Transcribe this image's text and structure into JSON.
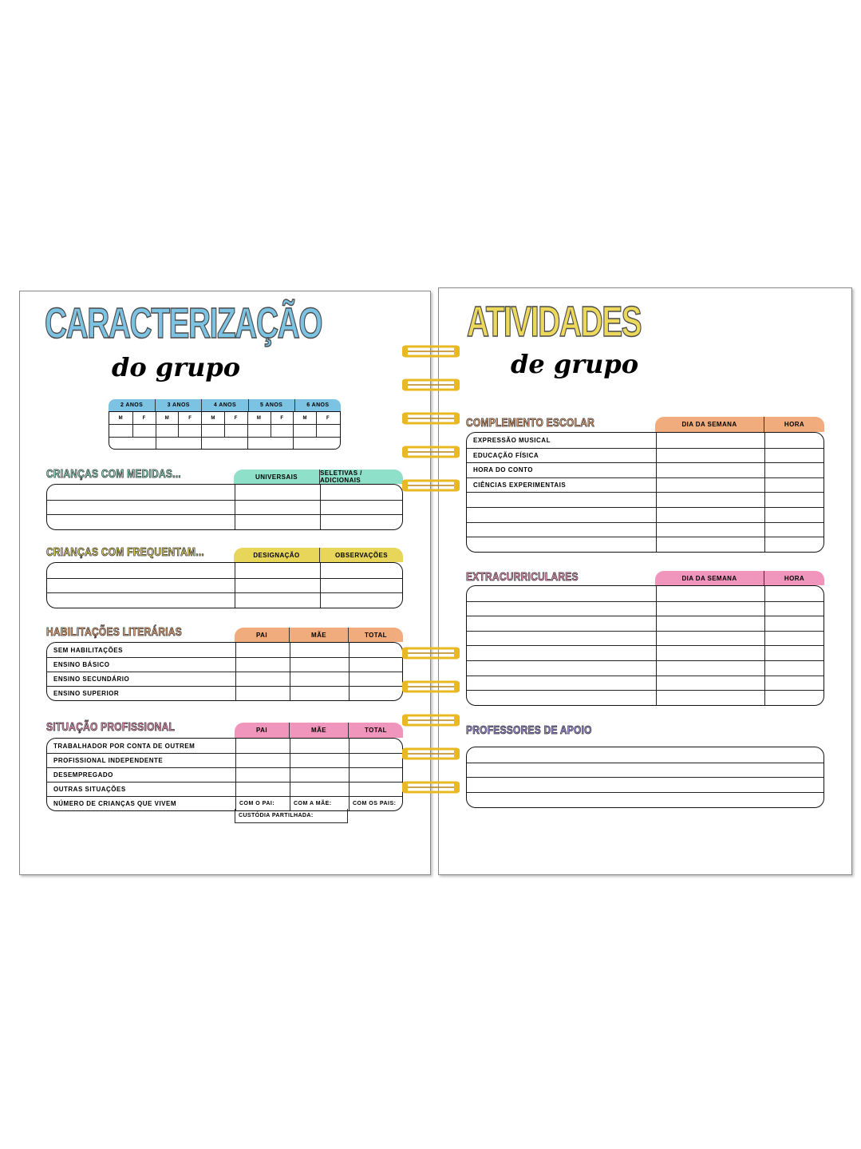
{
  "left_page": {
    "title": "CARACTERIZAÇÃO",
    "title_script": "do grupo",
    "title_color": "#7cc3e3",
    "age_table": {
      "groups": [
        "2 ANOS",
        "3 ANOS",
        "4 ANOS",
        "5 ANOS",
        "6 ANOS"
      ],
      "subheaders": [
        "M",
        "F"
      ],
      "color": "#7cc3e3"
    },
    "medidas": {
      "label": "CRIANÇAS COM MEDIDAS...",
      "label_color": "#8fe0c8",
      "color": "#8fe0c8",
      "headers": [
        "UNIVERSAIS",
        "SELETIVAS / ADICIONAIS"
      ],
      "rows": [
        "",
        "",
        ""
      ]
    },
    "frequentam": {
      "label": "CRIANÇAS COM FREQUENTAM...",
      "label_color": "#e8d65a",
      "color": "#e8d65a",
      "headers": [
        "DESIGNAÇÃO",
        "OBSERVAÇÕES"
      ],
      "rows": [
        "",
        "",
        ""
      ]
    },
    "habilitacoes": {
      "label": "HABILITAÇÕES LITERÁRIAS",
      "label_color": "#f0ac7c",
      "color": "#f0ac7c",
      "headers": [
        "PAI",
        "MÃE",
        "TOTAL"
      ],
      "rows": [
        "SEM HABILITAÇÕES",
        "ENSINO BÁSICO",
        "ENSINO SECUNDÁRIO",
        "ENSINO SUPERIOR"
      ]
    },
    "situacao": {
      "label": "SITUAÇÃO PROFISSIONAL",
      "label_color": "#f096bc",
      "color": "#f096bc",
      "headers": [
        "PAI",
        "MÃE",
        "TOTAL"
      ],
      "rows": [
        "TRABALHADOR POR CONTA DE OUTREM",
        "PROFISSIONAL INDEPENDENTE",
        "DESEMPREGADO",
        "OUTRAS SITUAÇÕES",
        "NÚMERO DE CRIANÇAS QUE VIVEM"
      ],
      "last_row_cells": [
        "COM O PAI:",
        "COM A MÃE:",
        "COM OS PAIS:"
      ],
      "custody": "CUSTÓDIA PARTILHADA:"
    }
  },
  "right_page": {
    "title": "ATIVIDADES",
    "title_script": "de grupo",
    "title_color": "#ecd85a",
    "complemento": {
      "label": "COMPLEMENTO ESCOLAR",
      "label_color": "#f0ac7c",
      "color": "#f0ac7c",
      "headers": [
        "DIA DA SEMANA",
        "HORA"
      ],
      "rows": [
        "EXPRESSÃO MUSICAL",
        "EDUCAÇÃO FÍSICA",
        "HORA DO CONTO",
        "CIÊNCIAS EXPERIMENTAIS",
        "",
        "",
        "",
        ""
      ]
    },
    "extracurriculares": {
      "label": "EXTRACURRICULARES",
      "label_color": "#f096bc",
      "color": "#f096bc",
      "headers": [
        "DIA DA SEMANA",
        "HORA"
      ],
      "rows": [
        "",
        "",
        "",
        "",
        "",
        "",
        "",
        ""
      ]
    },
    "professores": {
      "label": "PROFESSORES DE APOIO",
      "label_color": "#a08ee0",
      "rows": [
        "",
        "",
        "",
        ""
      ]
    }
  },
  "spiral": {
    "color": "#e8b923",
    "rings": 10
  }
}
